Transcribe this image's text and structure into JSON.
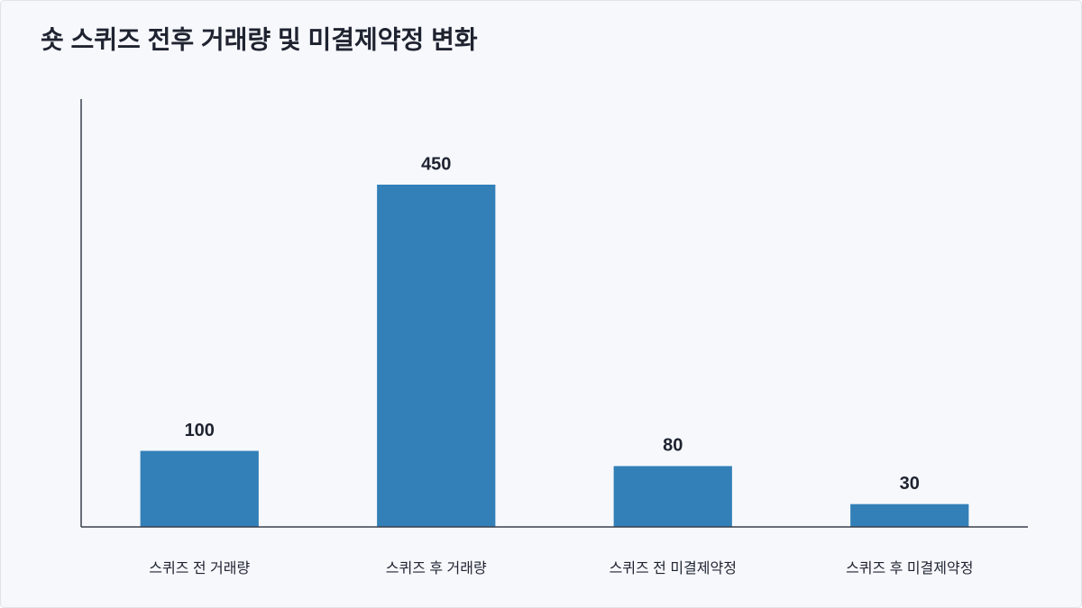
{
  "chart_data": {
    "type": "bar",
    "title": "숏 스퀴즈 전후 거래량 및 미결제약정 변화",
    "categories": [
      "스퀴즈 전 거래량",
      "스퀴즈 후 거래량",
      "스퀴즈 전 미결제약정",
      "스퀴즈 후 미결제약정"
    ],
    "values": [
      100,
      450,
      80,
      30
    ],
    "color": "#3380b8",
    "ylim": [
      0,
      562.5
    ],
    "grid": false
  }
}
